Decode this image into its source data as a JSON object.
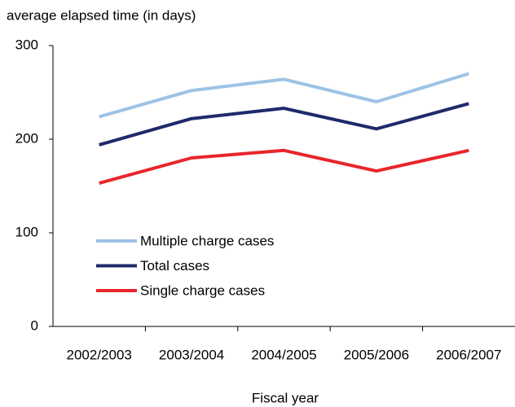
{
  "chart_data": {
    "type": "line",
    "y_axis_label": "average elapsed time (in days)",
    "x_axis_label": "Fiscal year",
    "categories": [
      "2002/2003",
      "2003/2004",
      "2004/2005",
      "2005/2006",
      "2006/2007"
    ],
    "series": [
      {
        "name": "Multiple charge cases",
        "color": "#9dc3e6",
        "values": [
          224,
          252,
          264,
          240,
          270
        ]
      },
      {
        "name": "Total cases",
        "color": "#1f2a6b",
        "values": [
          194,
          222,
          233,
          211,
          238
        ]
      },
      {
        "name": "Single charge cases",
        "color": "#e8262b",
        "values": [
          153,
          180,
          188,
          166,
          188
        ]
      }
    ],
    "ylim": [
      0,
      300
    ],
    "yticks": [
      0,
      100,
      200,
      300
    ],
    "grid": false,
    "legend_position": "lower-left"
  }
}
